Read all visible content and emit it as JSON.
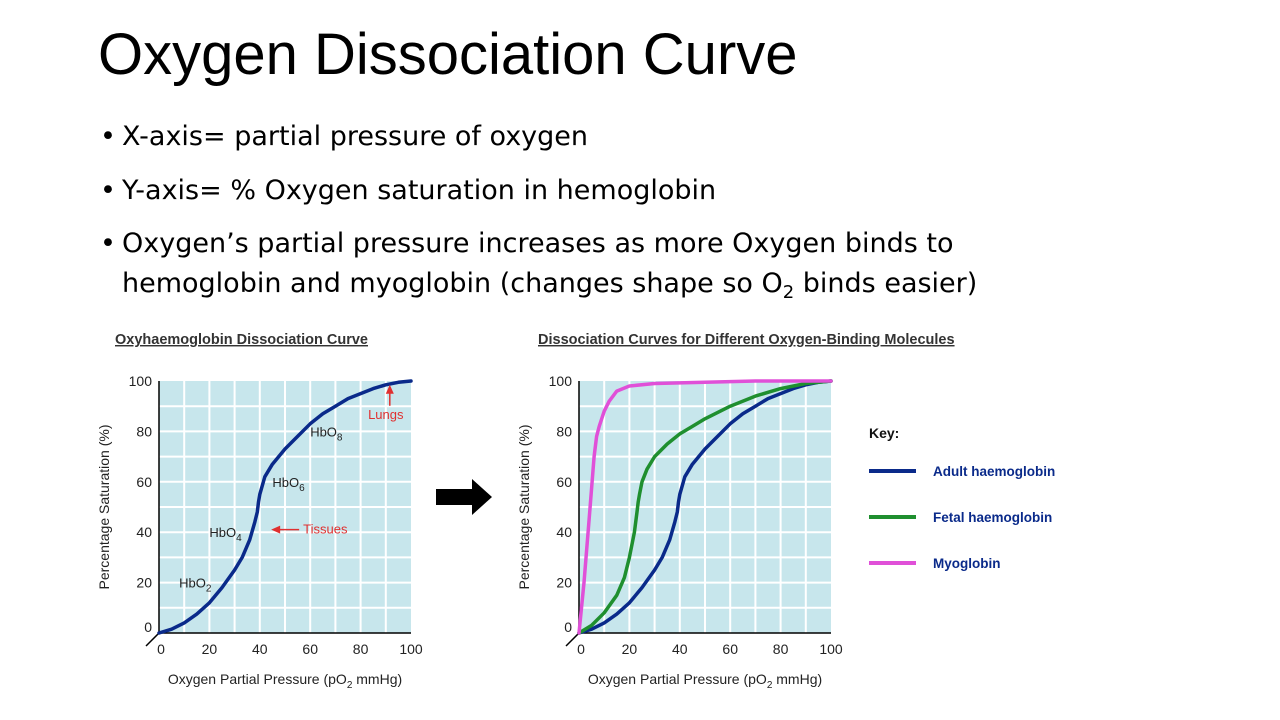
{
  "slide": {
    "title": "Oxygen Dissociation Curve",
    "bullets": {
      "b1": "X-axis= partial pressure of oxygen",
      "b2": "Y-axis= % Oxygen saturation in hemoglobin",
      "b3_text": "Oxygen’s partial pressure increases as more Oxygen binds to hemoglobin and myoglobin (changes shape so O",
      "b3_sub": "2",
      "b3_end": " binds easier)"
    }
  },
  "chart_data": [
    {
      "type": "line",
      "title": "Oxyhaemoglobin Dissociation Curve",
      "xlabel": "Oxygen Partial Pressure (pO2 mmHg)",
      "ylabel": "Percentage Saturation (%)",
      "xlim": [
        0,
        100
      ],
      "ylim": [
        0,
        100
      ],
      "xticks": [
        0,
        20,
        40,
        60,
        80,
        100
      ],
      "yticks": [
        0,
        20,
        40,
        60,
        80,
        100
      ],
      "grid": true,
      "series": [
        {
          "color": "#0a2a8a",
          "x": [
            0,
            5,
            10,
            15,
            20,
            25,
            30,
            33,
            36,
            38,
            39,
            39.5,
            40,
            42,
            45,
            50,
            55,
            60,
            65,
            70,
            75,
            80,
            85,
            90,
            95,
            100
          ],
          "y": [
            0,
            1.5,
            4,
            7.5,
            12,
            18,
            25,
            30,
            37,
            44,
            48,
            52,
            55,
            62,
            67,
            73,
            78,
            83,
            87,
            90,
            93,
            95,
            97,
            98.5,
            99.5,
            100
          ]
        }
      ],
      "annotations": [
        {
          "label": "HbO",
          "sub": "2",
          "x": 8,
          "y": 20
        },
        {
          "label": "HbO",
          "sub": "4",
          "x": 20,
          "y": 40
        },
        {
          "label": "HbO",
          "sub": "6",
          "x": 45,
          "y": 60
        },
        {
          "label": "HbO",
          "sub": "8",
          "x": 60,
          "y": 80
        }
      ],
      "callouts": [
        {
          "label": "Tissues",
          "x": 58,
          "y": 41,
          "color": "#e03030"
        },
        {
          "label": "Lungs",
          "x": 90,
          "y": 85,
          "color": "#e03030"
        }
      ]
    },
    {
      "type": "line",
      "title": "Dissociation Curves for Different Oxygen-Binding Molecules",
      "xlabel": "Oxygen Partial Pressure (pO2 mmHg)",
      "ylabel": "Percentage Saturation (%)",
      "xlim": [
        0,
        100
      ],
      "ylim": [
        0,
        100
      ],
      "xticks": [
        0,
        20,
        40,
        60,
        80,
        100
      ],
      "yticks": [
        0,
        20,
        40,
        60,
        80,
        100
      ],
      "grid": true,
      "legend_title": "Key:",
      "legend_position": "right",
      "series": [
        {
          "name": "Adult haemoglobin",
          "color": "#0a2a8a",
          "x": [
            0,
            5,
            10,
            15,
            20,
            25,
            30,
            33,
            36,
            38,
            39,
            39.5,
            40,
            42,
            45,
            50,
            55,
            60,
            65,
            70,
            75,
            80,
            85,
            90,
            95,
            100
          ],
          "y": [
            0,
            1.5,
            4,
            7.5,
            12,
            18,
            25,
            30,
            37,
            44,
            48,
            52,
            55,
            62,
            67,
            73,
            78,
            83,
            87,
            90,
            93,
            95,
            97,
            98.5,
            99.5,
            100
          ]
        },
        {
          "name": "Fetal haemoglobin",
          "color": "#1f8f2f",
          "x": [
            0,
            5,
            10,
            15,
            18,
            20,
            22,
            23,
            23.5,
            24,
            25,
            27,
            30,
            35,
            40,
            45,
            50,
            60,
            70,
            80,
            90,
            100
          ],
          "y": [
            0,
            3,
            8,
            15,
            22,
            30,
            40,
            48,
            52,
            55,
            60,
            65,
            70,
            75,
            79,
            82,
            85,
            90,
            94,
            97,
            99,
            100
          ]
        },
        {
          "name": "Myoglobin",
          "color": "#e050d8",
          "x": [
            0,
            2,
            4,
            6,
            7,
            8,
            10,
            12,
            15,
            20,
            30,
            50,
            70,
            100
          ],
          "y": [
            0,
            20,
            45,
            70,
            78,
            82,
            88,
            92,
            96,
            98,
            99,
            99.5,
            100,
            100
          ]
        }
      ]
    }
  ]
}
